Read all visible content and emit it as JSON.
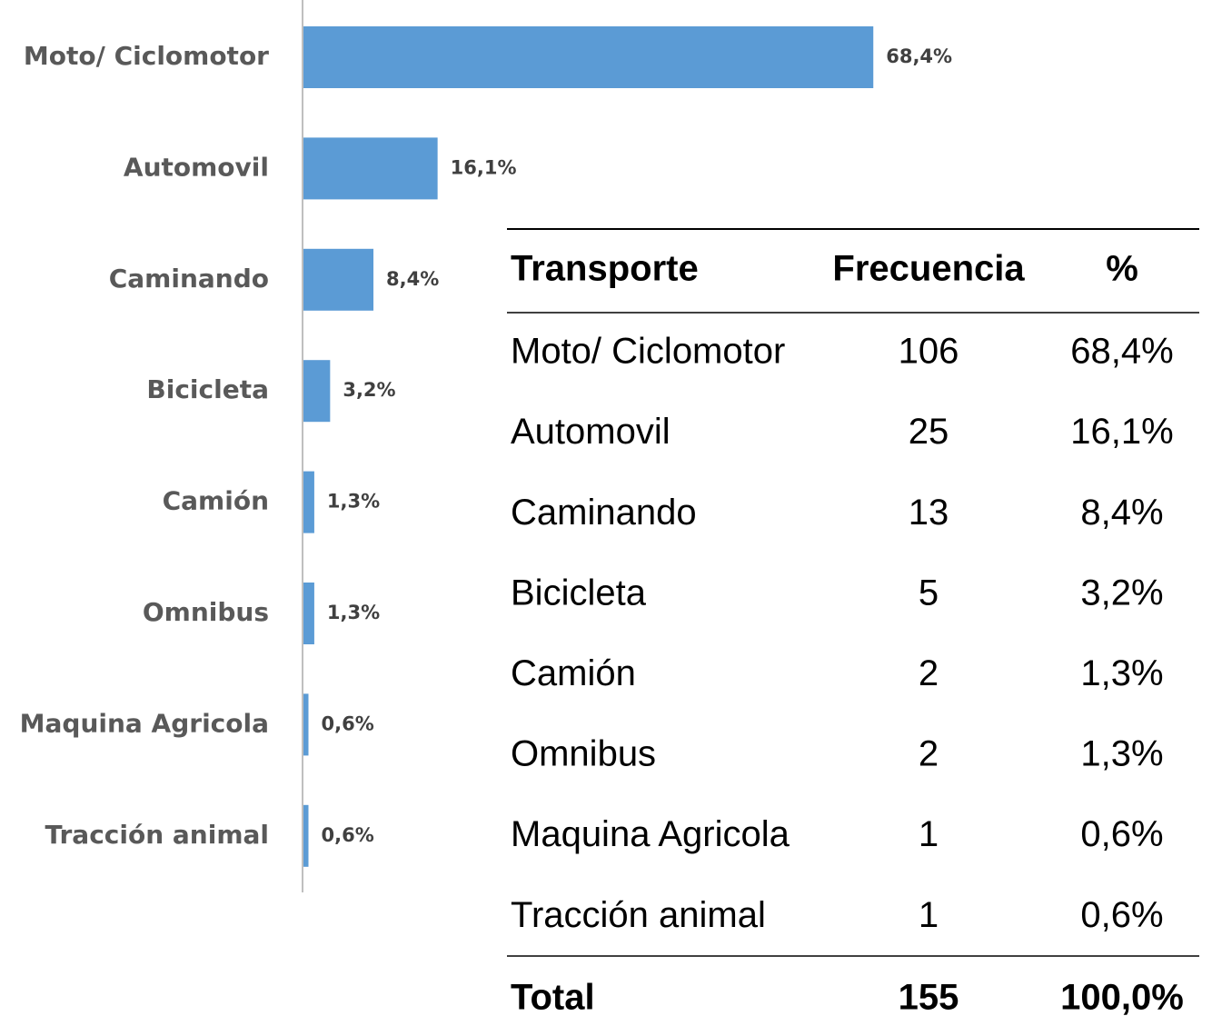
{
  "chart_data": {
    "type": "bar",
    "orientation": "horizontal",
    "categories": [
      "Moto/ Ciclomotor",
      "Automovil",
      "Caminando",
      "Bicicleta",
      "Camión",
      "Omnibus",
      "Maquina Agricola",
      "Tracción animal"
    ],
    "values": [
      68.4,
      16.1,
      8.4,
      3.2,
      1.3,
      1.3,
      0.6,
      0.6
    ],
    "value_labels": [
      "68,4%",
      "16,1%",
      "8,4%",
      "3,2%",
      "1,3%",
      "1,3%",
      "0,6%",
      "0,6%"
    ],
    "color": "#5b9bd5",
    "xlim": [
      0,
      100
    ]
  },
  "table": {
    "header": [
      "Transporte",
      "Frecuencia",
      "%"
    ],
    "rows": [
      [
        "Moto/ Ciclomotor",
        "106",
        "68,4%"
      ],
      [
        "Automovil",
        "25",
        "16,1%"
      ],
      [
        "Caminando",
        "13",
        "8,4%"
      ],
      [
        "Bicicleta",
        "5",
        "3,2%"
      ],
      [
        "Camión",
        "2",
        "1,3%"
      ],
      [
        "Omnibus",
        "2",
        "1,3%"
      ],
      [
        "Maquina Agricola",
        "1",
        "0,6%"
      ],
      [
        "Tracción animal",
        "1",
        "0,6%"
      ]
    ],
    "total": [
      "Total",
      "155",
      "100,0%"
    ]
  }
}
